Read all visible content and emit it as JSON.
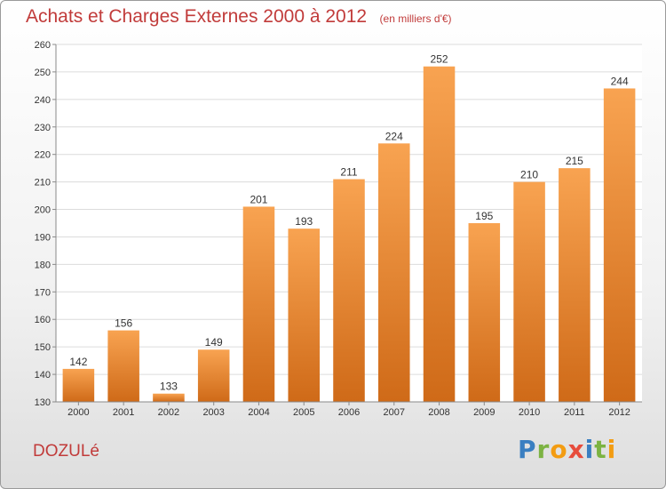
{
  "header": {
    "title": "Achats et Charges Externes 2000 à 2012",
    "subtitle": "(en milliers d'€)"
  },
  "footer": {
    "commune": "DOZULé",
    "logo_letters": [
      {
        "ch": "P",
        "color": "#3a7fc1"
      },
      {
        "ch": "r",
        "color": "#7cb342"
      },
      {
        "ch": "o",
        "color": "#f39c12"
      },
      {
        "ch": "x",
        "color": "#e74c3c"
      },
      {
        "ch": "i",
        "color": "#3a7fc1"
      },
      {
        "ch": "t",
        "color": "#7cb342"
      },
      {
        "ch": "i",
        "color": "#f39c12"
      }
    ]
  },
  "colors": {
    "accent": "#c13b3a",
    "bar_top": "#f8a351",
    "bar_bottom": "#cf6a18",
    "grid": "#dcdcdc",
    "axis": "#8a8a8a"
  },
  "chart_data": {
    "type": "bar",
    "categories": [
      "2000",
      "2001",
      "2002",
      "2003",
      "2004",
      "2005",
      "2006",
      "2007",
      "2008",
      "2009",
      "2010",
      "2011",
      "2012"
    ],
    "values": [
      142,
      156,
      133,
      149,
      201,
      193,
      211,
      224,
      252,
      195,
      210,
      215,
      244
    ],
    "ylim": [
      130,
      260
    ],
    "yticks": [
      130,
      140,
      150,
      160,
      170,
      180,
      190,
      200,
      210,
      220,
      230,
      240,
      250,
      260
    ],
    "grid": true
  }
}
